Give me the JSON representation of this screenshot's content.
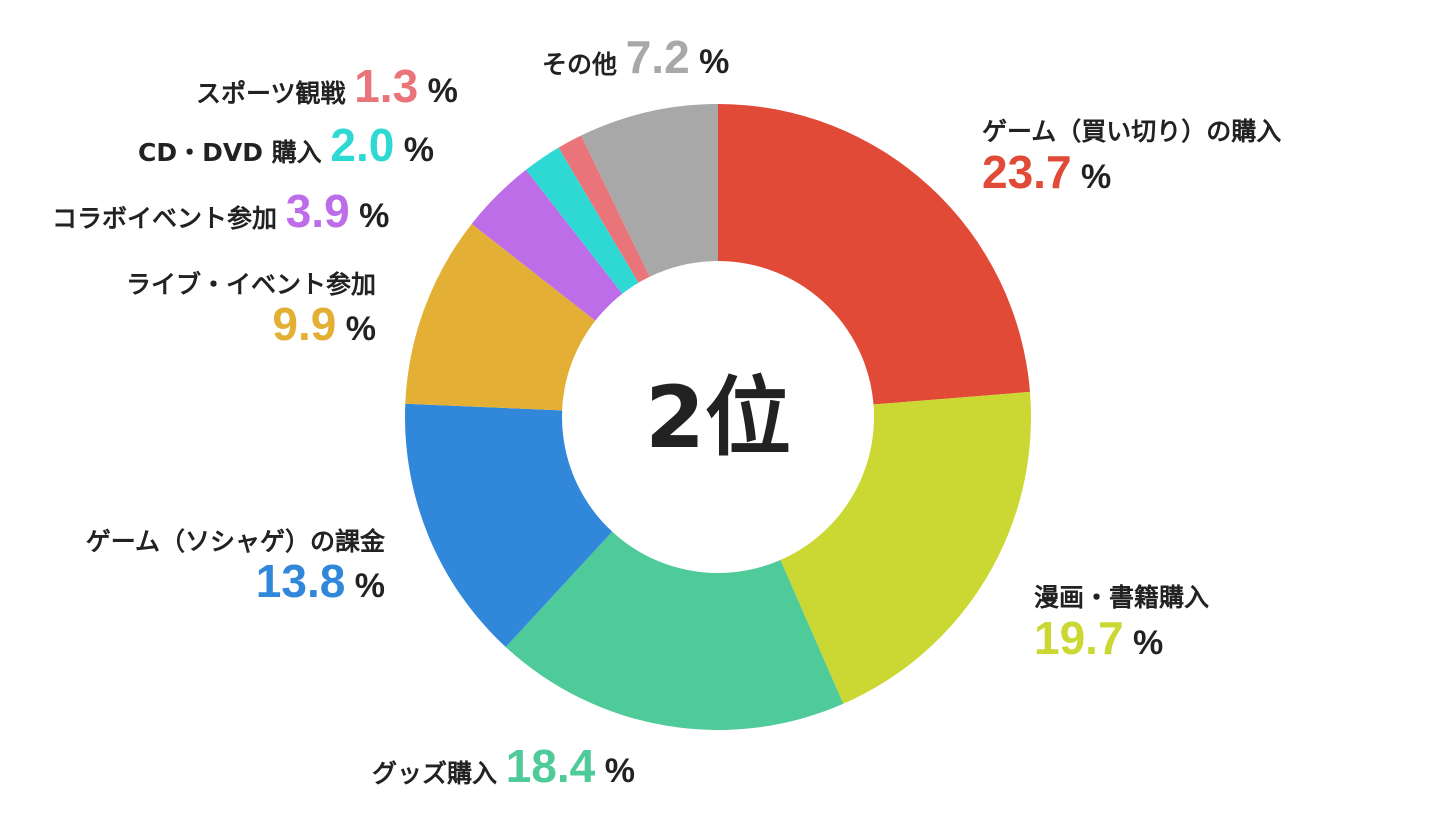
{
  "chart_data": {
    "type": "pie",
    "center_label": "2位",
    "unit": "%",
    "start": "top",
    "direction": "clockwise",
    "hole": "donut",
    "slices": [
      {
        "label": "ゲーム（買い切り）の購入",
        "value": 23.7,
        "value_text": "23.7",
        "color": "#e04a36"
      },
      {
        "label": "漫画・書籍購入",
        "value": 19.7,
        "value_text": "19.7",
        "color": "#cbd834"
      },
      {
        "label": "グッズ購入",
        "value": 18.4,
        "value_text": "18.4",
        "color": "#4fca99"
      },
      {
        "label": "ゲーム（ソシャゲ）の課金",
        "value": 13.8,
        "value_text": "13.8",
        "color": "#3187d9"
      },
      {
        "label": "ライブ・イベント参加",
        "value": 9.9,
        "value_text": "9.9",
        "color": "#e3b035"
      },
      {
        "label": "コラボイベント参加",
        "value": 3.9,
        "value_text": "3.9",
        "color": "#bd6de8"
      },
      {
        "label": "CD・DVD 購入",
        "value": 2.0,
        "value_text": "2.0",
        "color": "#2fd9d3"
      },
      {
        "label": "スポーツ観戦",
        "value": 1.3,
        "value_text": "1.3",
        "color": "#e9757a"
      },
      {
        "label": "その他",
        "value": 7.2,
        "value_text": "7.2",
        "color": "#a8a8a8"
      }
    ]
  }
}
